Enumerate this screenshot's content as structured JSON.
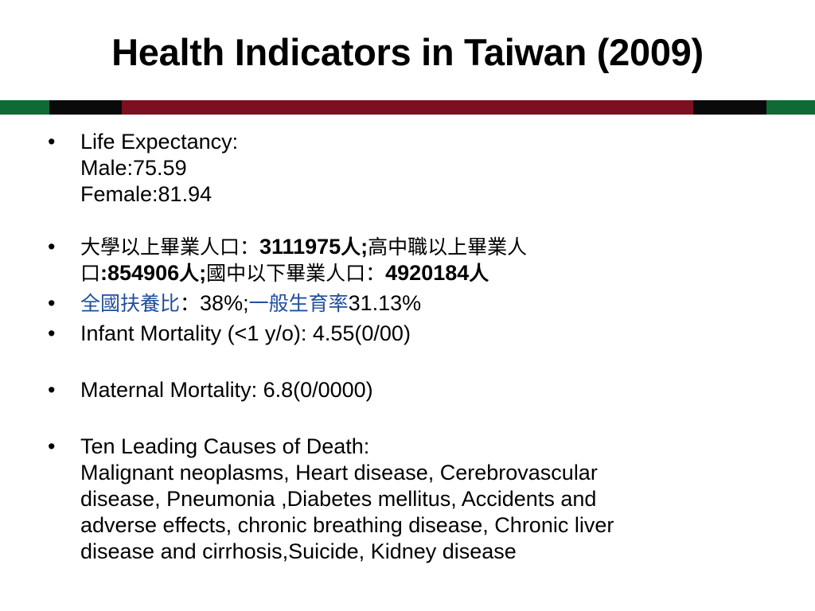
{
  "title": "Health Indicators in Taiwan (2009)",
  "divider_colors": {
    "green": "#0f6a35",
    "black": "#0a0a0a",
    "maroon": "#7d1020"
  },
  "bullet_symbol": "•",
  "life_expectancy": {
    "heading": "Life Expectancy:",
    "male": "Male:75.59",
    "female": "Female:81.94"
  },
  "education": {
    "university_label": "大學以上畢業人口：",
    "university_value": "3111975",
    "person_unit": "人",
    "separator": ";",
    "highschool_label_line1": "高中職以上畢業人",
    "highschool_label_line2": "口",
    "highschool_value": ":854906",
    "junior_label": "國中以下畢業人口：",
    "junior_value": "4920184"
  },
  "dependency": {
    "dependency_label": "全國扶養比",
    "dependency_colon": "：",
    "dependency_value": "38%;",
    "fertility_label": "一般生育率",
    "fertility_value": "31.13%"
  },
  "infant_mortality": "Infant Mortality (<1 y/o): 4.55(0/00)",
  "maternal_mortality": "Maternal Mortality: 6.8(0/0000)",
  "causes_of_death": {
    "heading": "Ten Leading Causes of Death:",
    "list_line1": "Malignant neoplasms, Heart disease, Cerebrovascular",
    "list_line2": "disease, Pneumonia ,Diabetes mellitus, Accidents and",
    "list_line3": "adverse effects, chronic breathing disease,  Chronic liver",
    "list_line4": "disease and cirrhosis,Suicide, Kidney disease"
  }
}
